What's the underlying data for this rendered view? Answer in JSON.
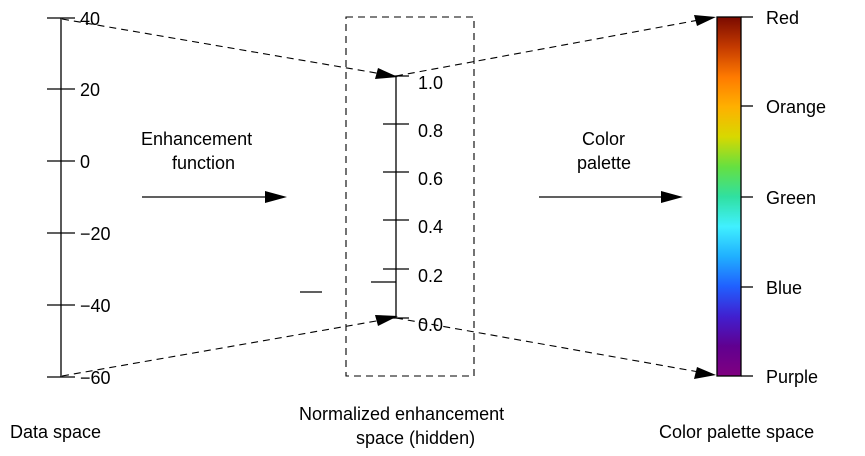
{
  "data_space": {
    "ticks": [
      "40",
      "20",
      "0",
      "−20",
      "−40",
      "−60"
    ],
    "label": "Data space"
  },
  "enhancement": {
    "label_line1": "Enhancement",
    "label_line2": "function"
  },
  "normalized_space": {
    "ticks": [
      "1.0",
      "0.8",
      "0.6",
      "0.4",
      "0.2",
      "0.0"
    ],
    "label_line1": "Normalized enhancement",
    "label_line2": "space (hidden)"
  },
  "palette_arrow": {
    "label_line1": "Color",
    "label_line2": "palette"
  },
  "palette_space": {
    "color_labels": [
      "Red",
      "Orange",
      "Green",
      "Blue",
      "Purple"
    ],
    "label": "Color palette space",
    "gradient_colors": [
      "#7a0a00",
      "#c43a00",
      "#ff7a00",
      "#ffb000",
      "#d8d800",
      "#66e040",
      "#30e0a0",
      "#40f0ff",
      "#20b0ff",
      "#2060ff",
      "#4020d0",
      "#600090",
      "#800080"
    ]
  }
}
